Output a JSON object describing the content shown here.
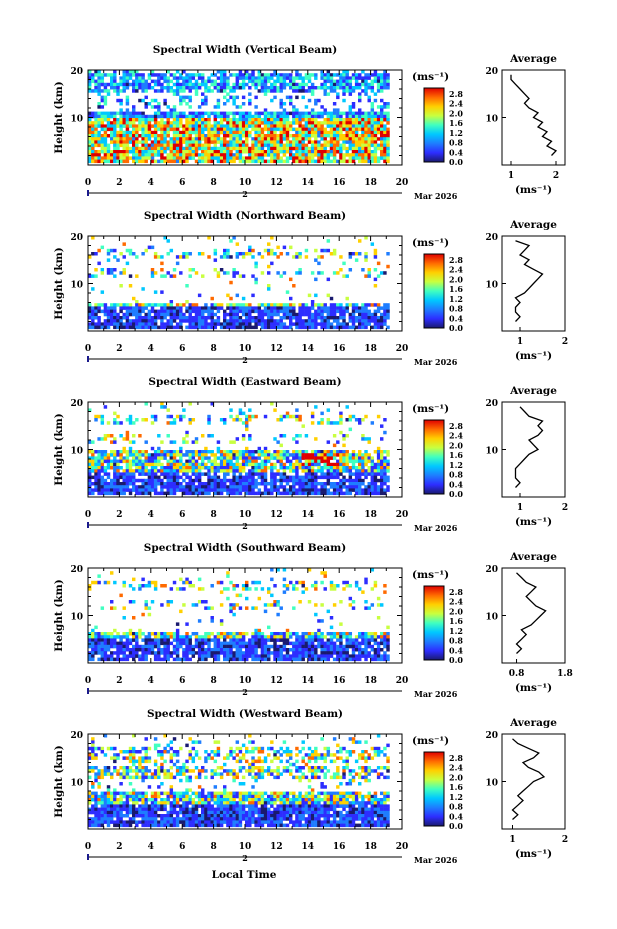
{
  "figure": {
    "xlabel": "Local Time",
    "date_label": "Mar 2026",
    "day_marker": "2",
    "colorbar_unit": "(ms⁻¹)",
    "colorbar_ticks": [
      "0.0",
      "0.4",
      "0.8",
      "1.2",
      "1.6",
      "2.0",
      "2.4",
      "2.8"
    ],
    "colors": {
      "scale": [
        "#1a1a6e",
        "#2d2dff",
        "#1e7dff",
        "#00c8ff",
        "#40ffc0",
        "#c8ff40",
        "#ffd000",
        "#ff6a00",
        "#e00000"
      ]
    }
  },
  "chart_data": [
    {
      "type": "heatmap",
      "title": "Spectral Width (Vertical Beam)",
      "xlabel": "Local Time",
      "ylabel": "Height (km)",
      "xlim": [
        0,
        20
      ],
      "ylim": [
        0,
        20
      ],
      "xticks": [
        0,
        2,
        4,
        6,
        8,
        10,
        12,
        14,
        16,
        18,
        20
      ],
      "yticks": [
        10,
        20
      ],
      "zlim": [
        0.0,
        3.0
      ],
      "profile": {
        "title": "Average",
        "xlabel": "(ms⁻¹)",
        "xlim": [
          0.8,
          2.2
        ],
        "xticks": [
          1,
          2
        ],
        "ylim": [
          0,
          20
        ],
        "yticks": [
          10,
          20
        ],
        "height": [
          2,
          3,
          4,
          5,
          6,
          7,
          8,
          9,
          10,
          11,
          12,
          13,
          14,
          15,
          16,
          17,
          18,
          19
        ],
        "values": [
          1.9,
          2.0,
          1.8,
          1.9,
          1.7,
          1.8,
          1.6,
          1.7,
          1.5,
          1.6,
          1.4,
          1.3,
          1.4,
          1.3,
          1.2,
          1.1,
          1.0,
          1.0
        ]
      }
    },
    {
      "type": "heatmap",
      "title": "Spectral Width (Northward Beam)",
      "xlabel": "Local Time",
      "ylabel": "Height (km)",
      "xlim": [
        0,
        20
      ],
      "ylim": [
        0,
        20
      ],
      "xticks": [
        0,
        2,
        4,
        6,
        8,
        10,
        12,
        14,
        16,
        18,
        20
      ],
      "yticks": [
        10,
        20
      ],
      "zlim": [
        0.0,
        3.0
      ],
      "profile": {
        "title": "Average",
        "xlabel": "(ms⁻¹)",
        "xlim": [
          0.6,
          2.0
        ],
        "xticks": [
          1,
          2
        ],
        "ylim": [
          0,
          20
        ],
        "yticks": [
          10,
          20
        ],
        "height": [
          2,
          3,
          4,
          5,
          6,
          7,
          8,
          9,
          10,
          11,
          12,
          13,
          14,
          15,
          16,
          17,
          18,
          19
        ],
        "values": [
          0.9,
          1.0,
          0.9,
          0.9,
          1.0,
          0.9,
          1.1,
          1.2,
          1.3,
          1.4,
          1.5,
          1.3,
          1.1,
          1.2,
          1.0,
          1.1,
          1.2,
          0.9
        ]
      }
    },
    {
      "type": "heatmap",
      "title": "Spectral Width (Eastward Beam)",
      "xlabel": "Local Time",
      "ylabel": "Height (km)",
      "xlim": [
        0,
        20
      ],
      "ylim": [
        0,
        20
      ],
      "xticks": [
        0,
        2,
        4,
        6,
        8,
        10,
        12,
        14,
        16,
        18,
        20
      ],
      "yticks": [
        10,
        20
      ],
      "zlim": [
        0.0,
        3.0
      ],
      "profile": {
        "title": "Average",
        "xlabel": "(ms⁻¹)",
        "xlim": [
          0.6,
          2.0
        ],
        "xticks": [
          1,
          2
        ],
        "ylim": [
          0,
          20
        ],
        "yticks": [
          10,
          20
        ],
        "height": [
          2,
          3,
          4,
          5,
          6,
          7,
          8,
          9,
          10,
          11,
          12,
          13,
          14,
          15,
          16,
          17,
          18,
          19
        ],
        "values": [
          0.9,
          1.0,
          0.9,
          0.9,
          0.9,
          1.0,
          1.1,
          1.2,
          1.4,
          1.3,
          1.2,
          1.4,
          1.5,
          1.4,
          1.5,
          1.2,
          1.1,
          1.0
        ]
      }
    },
    {
      "type": "heatmap",
      "title": "Spectral Width (Southward Beam)",
      "xlabel": "Local Time",
      "ylabel": "Height (km)",
      "xlim": [
        0,
        20
      ],
      "ylim": [
        0,
        20
      ],
      "xticks": [
        0,
        2,
        4,
        6,
        8,
        10,
        12,
        14,
        16,
        18,
        20
      ],
      "yticks": [
        10,
        20
      ],
      "zlim": [
        0.0,
        3.0
      ],
      "profile": {
        "title": "Average",
        "xlabel": "(ms⁻¹)",
        "xlim": [
          0.5,
          1.8
        ],
        "xticks": [
          0.8,
          1.8
        ],
        "ylim": [
          0,
          20
        ],
        "yticks": [
          10,
          20
        ],
        "height": [
          2,
          3,
          4,
          5,
          6,
          7,
          8,
          9,
          10,
          11,
          12,
          13,
          14,
          15,
          16,
          17,
          18,
          19
        ],
        "values": [
          0.8,
          0.9,
          0.8,
          0.9,
          1.0,
          0.9,
          1.1,
          1.2,
          1.3,
          1.4,
          1.2,
          1.1,
          1.0,
          1.1,
          1.2,
          1.0,
          0.9,
          0.8
        ]
      }
    },
    {
      "type": "heatmap",
      "title": "Spectral Width (Westward Beam)",
      "xlabel": "Local Time",
      "ylabel": "Height (km)",
      "xlim": [
        0,
        20
      ],
      "ylim": [
        0,
        20
      ],
      "xticks": [
        0,
        2,
        4,
        6,
        8,
        10,
        12,
        14,
        16,
        18,
        20
      ],
      "yticks": [
        10,
        20
      ],
      "zlim": [
        0.0,
        3.0
      ],
      "profile": {
        "title": "Average",
        "xlabel": "(ms⁻¹)",
        "xlim": [
          0.8,
          2.0
        ],
        "xticks": [
          1,
          2
        ],
        "ylim": [
          0,
          20
        ],
        "yticks": [
          10,
          20
        ],
        "height": [
          2,
          3,
          4,
          5,
          6,
          7,
          8,
          9,
          10,
          11,
          12,
          13,
          14,
          15,
          16,
          17,
          18,
          19
        ],
        "values": [
          1.0,
          1.1,
          1.0,
          1.1,
          1.2,
          1.1,
          1.2,
          1.3,
          1.4,
          1.6,
          1.5,
          1.3,
          1.2,
          1.4,
          1.5,
          1.3,
          1.1,
          1.0
        ]
      }
    }
  ]
}
